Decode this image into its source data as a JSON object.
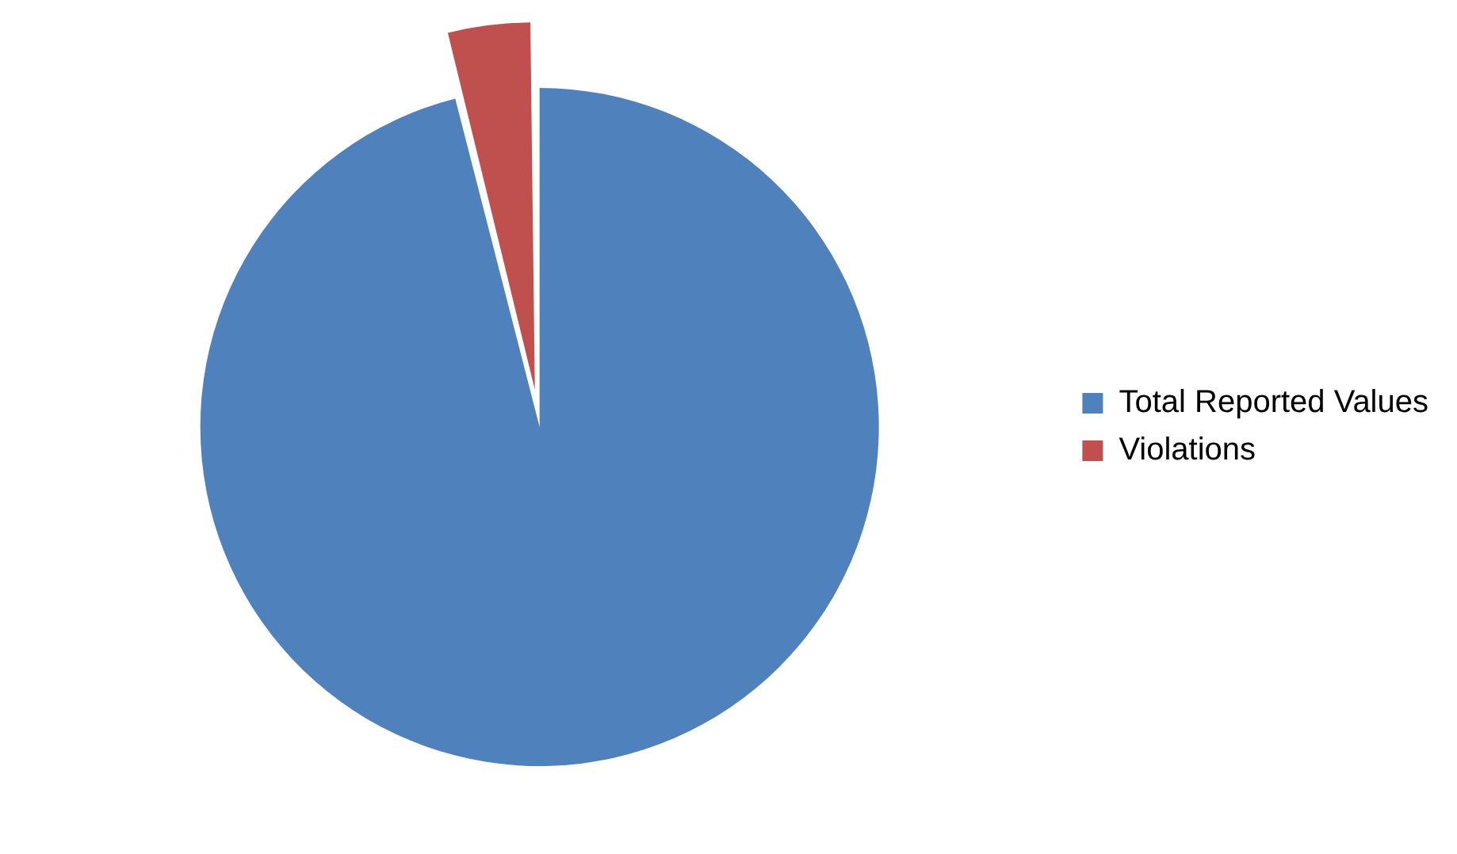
{
  "chart_data": {
    "type": "pie",
    "categories": [
      "Total Reported Values",
      "Violations"
    ],
    "values": [
      96,
      4
    ],
    "colors": [
      "#4f81bd",
      "#c0504d"
    ],
    "legend": "right"
  }
}
